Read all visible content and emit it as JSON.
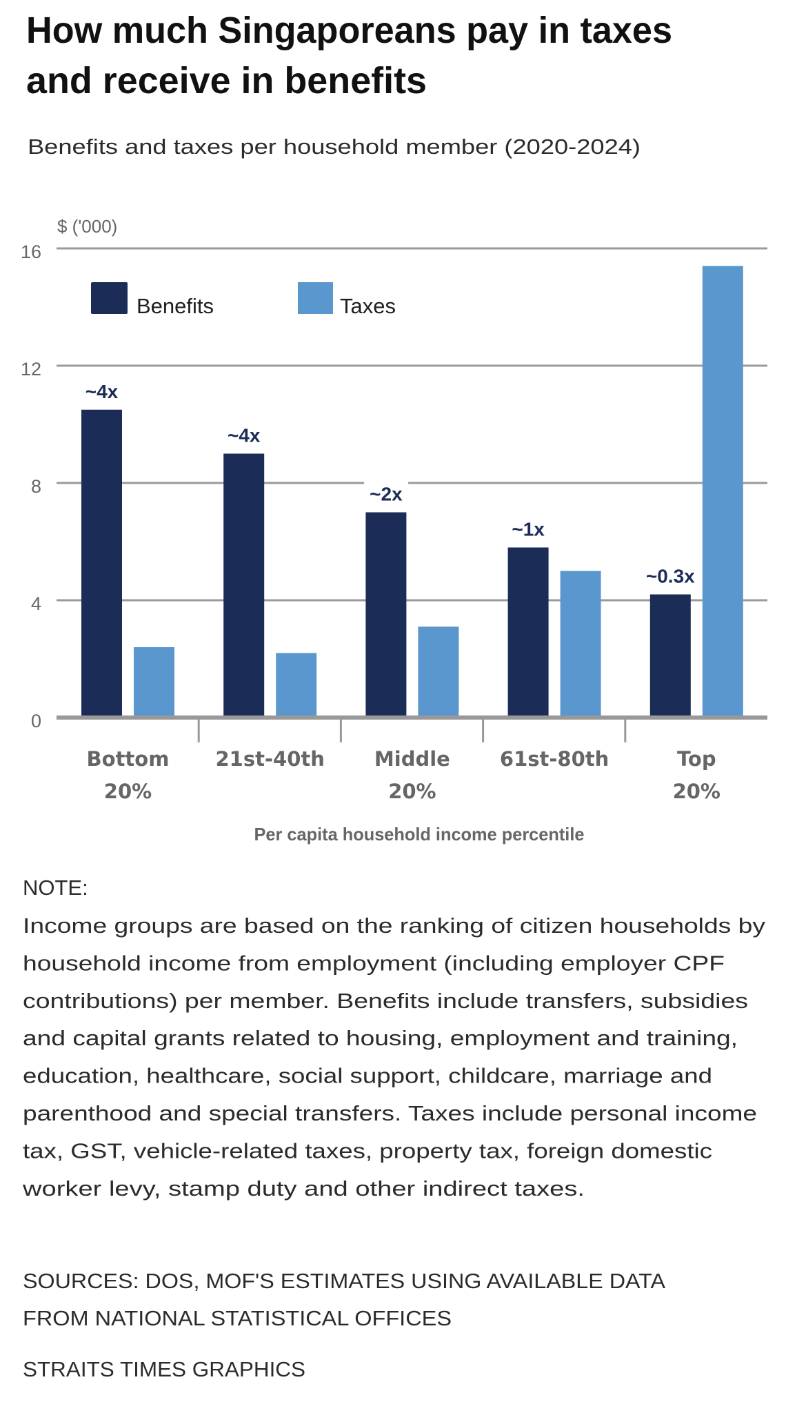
{
  "chart_data": {
    "type": "bar",
    "title": "How much Singaporeans pay in taxes and receive in benefits",
    "title_lines": [
      "How much Singaporeans pay in taxes",
      "and receive in benefits"
    ],
    "subtitle": "Benefits and taxes per household member (2020-2024)",
    "ylabel": "$ ('000)",
    "xlabel": "Per capita household income percentile",
    "ylim": [
      0,
      16
    ],
    "yticks": [
      0,
      4,
      8,
      12,
      16
    ],
    "grid": true,
    "legend_position": "top-left",
    "categories": [
      "Bottom 20%",
      "21st-40th",
      "Middle 20%",
      "61st-80th",
      "Top 20%"
    ],
    "category_lines": [
      [
        "Bottom",
        "20%"
      ],
      [
        "21st-40th"
      ],
      [
        "Middle",
        "20%"
      ],
      [
        "61st-80th"
      ],
      [
        "Top",
        "20%"
      ]
    ],
    "series": [
      {
        "name": "Benefits",
        "color": "#1b2d57",
        "values": [
          10.5,
          9.0,
          7.0,
          5.8,
          4.2
        ]
      },
      {
        "name": "Taxes",
        "color": "#5b97cf",
        "values": [
          2.4,
          2.2,
          3.1,
          5.0,
          15.4
        ]
      }
    ],
    "annotations": [
      {
        "category": "Bottom 20%",
        "series": "Benefits",
        "text": "~4x"
      },
      {
        "category": "21st-40th",
        "series": "Benefits",
        "text": "~4x"
      },
      {
        "category": "Middle 20%",
        "series": "Benefits",
        "text": "~2x"
      },
      {
        "category": "61st-80th",
        "series": "Benefits",
        "text": "~1x"
      },
      {
        "category": "Top 20%",
        "series": "Benefits",
        "text": "~0.3x"
      }
    ],
    "annotation_color": "#1b2d57"
  },
  "note": {
    "heading": "NOTE:",
    "lines": [
      "Income groups are based on the ranking of citizen households by",
      "household income from employment (including employer CPF",
      "contributions) per member. Benefits include transfers, subsidies",
      "and capital grants related to housing, employment and training,",
      "education, healthcare, social support, childcare, marriage and",
      "parenthood and special transfers. Taxes include personal income",
      "tax, GST, vehicle-related taxes, property tax, foreign domestic",
      "worker levy, stamp duty and other indirect taxes."
    ]
  },
  "sources": {
    "lines": [
      "SOURCES: DOS, MOF'S ESTIMATES USING AVAILABLE DATA",
      "FROM NATIONAL STATISTICAL OFFICES"
    ],
    "credit": "STRAITS TIMES GRAPHICS"
  }
}
